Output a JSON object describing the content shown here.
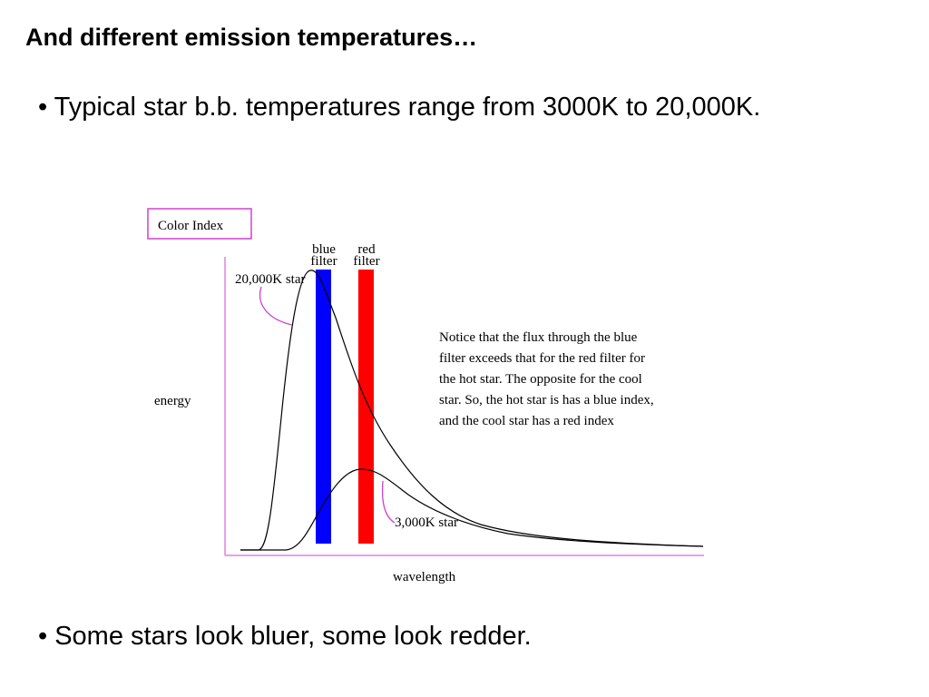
{
  "header": {
    "title": "And different emission temperatures…"
  },
  "bullets": [
    "• Typical star b.b. temperatures range from 3000K to 20,000K.",
    "• Some stars look bluer, some look redder."
  ],
  "figure": {
    "title": "Color Index",
    "blue_filter": [
      "blue",
      "filter"
    ],
    "red_filter": [
      "red",
      "filter"
    ],
    "hot_star": "20,000K star",
    "cool_star": "3,000K star",
    "y_label": "energy",
    "x_label": "wavelength",
    "note": [
      "Notice that the flux through the blue",
      "filter exceeds that for the red filter for",
      "the hot star.  The opposite for the cool",
      "star. So, the hot star is has a blue index,",
      "and the cool star has a red index"
    ]
  }
}
